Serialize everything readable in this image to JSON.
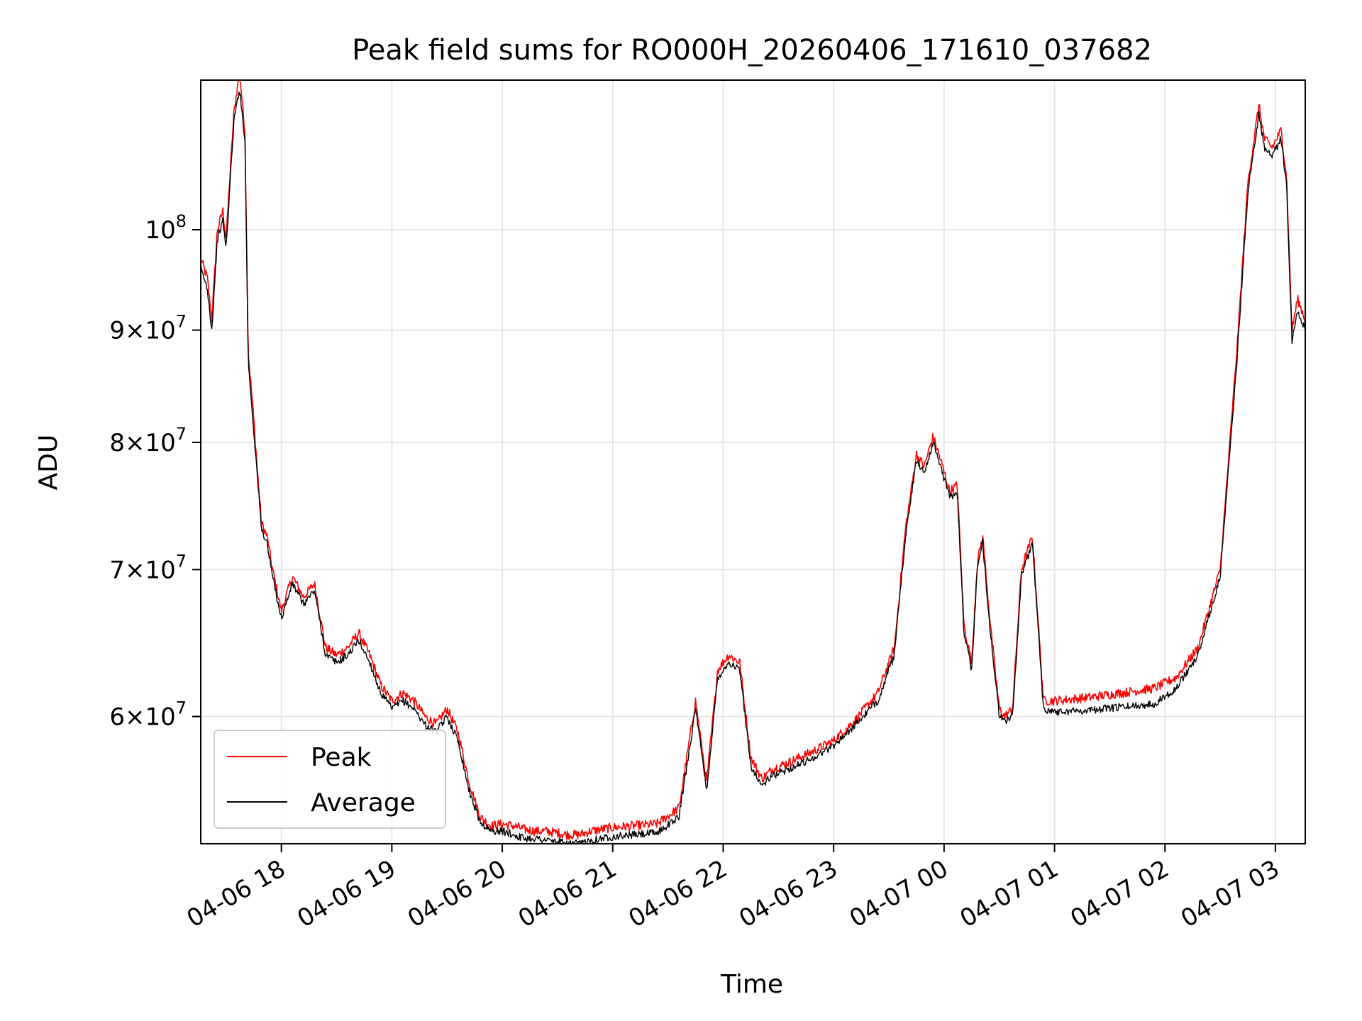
{
  "chart_data": {
    "type": "line",
    "title": "Peak field sums for RO000H_20260406_171610_037682",
    "xlabel": "Time",
    "ylabel": "ADU",
    "yscale": "log",
    "grid": true,
    "legend_position": "lower-left",
    "x_unit": "hours since 04-06 17:00",
    "xlim": [
      0.27,
      10.27
    ],
    "ylim": [
      52500000,
      117000000
    ],
    "x_ticks": [
      {
        "value": 1,
        "label": "04-06 18"
      },
      {
        "value": 2,
        "label": "04-06 19"
      },
      {
        "value": 3,
        "label": "04-06 20"
      },
      {
        "value": 4,
        "label": "04-06 21"
      },
      {
        "value": 5,
        "label": "04-06 22"
      },
      {
        "value": 6,
        "label": "04-06 23"
      },
      {
        "value": 7,
        "label": "04-07 00"
      },
      {
        "value": 8,
        "label": "04-07 01"
      },
      {
        "value": 9,
        "label": "04-07 02"
      },
      {
        "value": 10,
        "label": "04-07 03"
      }
    ],
    "y_ticks": [
      {
        "value": 60000000,
        "mant": "6×10",
        "exp": "7"
      },
      {
        "value": 70000000,
        "mant": "7×10",
        "exp": "7"
      },
      {
        "value": 80000000,
        "mant": "8×10",
        "exp": "7"
      },
      {
        "value": 90000000,
        "mant": "9×10",
        "exp": "7"
      },
      {
        "value": 100000000,
        "mant": "10",
        "exp": "8"
      }
    ],
    "series": [
      {
        "name": "Peak",
        "color": "#ff0000",
        "noise": 0.005,
        "x": [
          0.27,
          0.33,
          0.37,
          0.42,
          0.47,
          0.5,
          0.53,
          0.57,
          0.62,
          0.67,
          0.7,
          0.75,
          0.78,
          0.82,
          0.87,
          0.92,
          1.0,
          1.1,
          1.2,
          1.3,
          1.4,
          1.5,
          1.6,
          1.7,
          1.8,
          1.9,
          2.0,
          2.1,
          2.2,
          2.3,
          2.4,
          2.5,
          2.6,
          2.7,
          2.8,
          2.9,
          3.0,
          3.1,
          3.2,
          3.3,
          3.4,
          3.5,
          3.6,
          3.7,
          3.8,
          3.9,
          4.0,
          4.2,
          4.4,
          4.6,
          4.75,
          4.85,
          4.95,
          5.05,
          5.15,
          5.25,
          5.35,
          5.45,
          5.6,
          5.8,
          6.0,
          6.2,
          6.4,
          6.55,
          6.65,
          6.75,
          6.82,
          6.9,
          6.97,
          7.05,
          7.12,
          7.18,
          7.25,
          7.3,
          7.35,
          7.42,
          7.5,
          7.55,
          7.62,
          7.7,
          7.8,
          7.9,
          8.0,
          8.3,
          8.6,
          8.9,
          9.1,
          9.3,
          9.5,
          9.65,
          9.75,
          9.85,
          9.9,
          9.97,
          10.05,
          10.1,
          10.15,
          10.2,
          10.27
        ],
        "y": [
          97000000,
          95000000,
          91000000,
          100000000,
          102000000,
          99000000,
          105000000,
          113000000,
          118000000,
          111000000,
          88000000,
          82000000,
          78000000,
          73500000,
          72500000,
          70000000,
          67000000,
          69500000,
          68000000,
          69000000,
          64500000,
          64000000,
          64500000,
          65500000,
          64000000,
          62000000,
          61000000,
          61500000,
          61000000,
          60000000,
          59500000,
          60500000,
          59000000,
          56000000,
          54000000,
          53500000,
          53600000,
          53500000,
          53300000,
          53200000,
          53200000,
          53100000,
          53000000,
          53000000,
          53200000,
          53300000,
          53400000,
          53500000,
          53600000,
          54500000,
          61000000,
          56000000,
          63000000,
          64000000,
          63500000,
          57500000,
          56200000,
          56800000,
          57200000,
          57800000,
          58500000,
          59800000,
          61500000,
          64500000,
          73000000,
          79000000,
          78000000,
          80500000,
          78500000,
          76000000,
          76500000,
          66000000,
          63500000,
          70500000,
          72500000,
          66000000,
          60500000,
          60000000,
          60500000,
          70000000,
          72500000,
          61000000,
          61000000,
          61200000,
          61500000,
          61800000,
          62500000,
          64500000,
          70000000,
          88000000,
          105000000,
          114000000,
          110000000,
          109000000,
          111000000,
          106000000,
          90000000,
          93000000,
          91000000
        ]
      },
      {
        "name": "Average",
        "color": "#000000",
        "noise": 0.004,
        "x": [
          0.27,
          0.33,
          0.37,
          0.42,
          0.47,
          0.5,
          0.53,
          0.57,
          0.62,
          0.67,
          0.7,
          0.75,
          0.78,
          0.82,
          0.87,
          0.92,
          1.0,
          1.1,
          1.2,
          1.3,
          1.4,
          1.5,
          1.6,
          1.7,
          1.8,
          1.9,
          2.0,
          2.1,
          2.2,
          2.3,
          2.4,
          2.5,
          2.6,
          2.7,
          2.8,
          2.9,
          3.0,
          3.1,
          3.2,
          3.3,
          3.4,
          3.5,
          3.6,
          3.7,
          3.8,
          3.9,
          4.0,
          4.2,
          4.4,
          4.6,
          4.75,
          4.85,
          4.95,
          5.05,
          5.15,
          5.25,
          5.35,
          5.45,
          5.6,
          5.8,
          6.0,
          6.2,
          6.4,
          6.55,
          6.65,
          6.75,
          6.82,
          6.9,
          6.97,
          7.05,
          7.12,
          7.18,
          7.25,
          7.3,
          7.35,
          7.42,
          7.5,
          7.55,
          7.62,
          7.7,
          7.8,
          7.9,
          8.0,
          8.3,
          8.6,
          8.9,
          9.1,
          9.3,
          9.5,
          9.65,
          9.75,
          9.85,
          9.9,
          9.97,
          10.05,
          10.1,
          10.15,
          10.2,
          10.27
        ],
        "y": [
          96000000,
          94000000,
          90000000,
          99000000,
          101000000,
          98000000,
          104000000,
          112000000,
          116000000,
          110000000,
          87000000,
          81000000,
          77500000,
          73000000,
          72000000,
          69500000,
          66500000,
          69000000,
          67500000,
          68500000,
          64000000,
          63500000,
          64000000,
          65000000,
          63500000,
          61500000,
          60500000,
          61000000,
          60500000,
          59500000,
          59000000,
          60000000,
          58500000,
          55500000,
          53700000,
          53200000,
          53200000,
          53000000,
          52800000,
          52800000,
          52700000,
          52600000,
          52500000,
          52500000,
          52700000,
          52800000,
          52900000,
          53000000,
          53100000,
          54000000,
          60500000,
          55500000,
          62500000,
          63500000,
          63000000,
          57000000,
          55800000,
          56400000,
          56800000,
          57400000,
          58200000,
          59500000,
          61000000,
          64000000,
          72500000,
          78500000,
          77500000,
          80000000,
          78000000,
          75500000,
          76000000,
          65500000,
          63000000,
          70000000,
          72000000,
          65500000,
          60000000,
          59700000,
          60000000,
          69500000,
          72000000,
          60500000,
          60300000,
          60400000,
          60600000,
          60800000,
          61800000,
          64000000,
          69500000,
          87000000,
          104000000,
          113000000,
          109000000,
          108000000,
          110000000,
          105000000,
          89000000,
          92000000,
          90000000
        ]
      }
    ]
  }
}
